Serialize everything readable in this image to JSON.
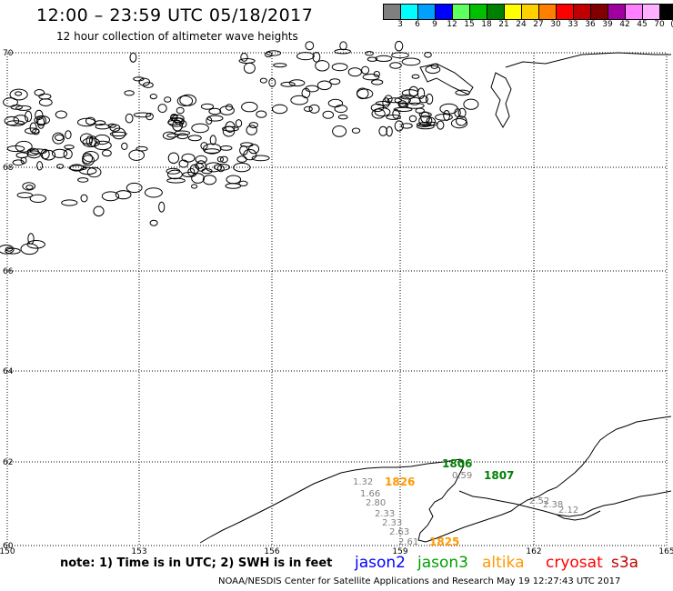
{
  "header": {
    "title": "12:00 – 23:59 UTC 05/18/2017",
    "subtitle": "12 hour collection of altimeter wave heights"
  },
  "color_scale": {
    "colors": [
      "#7f7f7f",
      "#00ffff",
      "#00a0ff",
      "#0000ff",
      "#60ff60",
      "#00c000",
      "#008000",
      "#ffff00",
      "#ffd000",
      "#ff8000",
      "#ff0000",
      "#c00000",
      "#800000",
      "#a000a0",
      "#ff80ff",
      "#ffb0ff",
      "#000000"
    ],
    "labels": [
      "3",
      "6",
      "9",
      "12",
      "15",
      "18",
      "21",
      "24",
      "27",
      "30",
      "33",
      "36",
      "39",
      "42",
      "45",
      "70",
      "(ft)"
    ]
  },
  "map": {
    "lat_labels": [
      "70",
      "68",
      "66",
      "64",
      "62",
      "60"
    ],
    "lon_labels": [
      "150",
      "153",
      "156",
      "159",
      "162",
      "165"
    ],
    "observations": [
      {
        "text": "1.32",
        "color": "#808080",
        "size": "s"
      },
      {
        "text": "1.66",
        "color": "#808080",
        "size": "s"
      },
      {
        "text": "2.80",
        "color": "#808080",
        "size": "s"
      },
      {
        "text": "2.33",
        "color": "#808080",
        "size": "s"
      },
      {
        "text": "2.33",
        "color": "#808080",
        "size": "s"
      },
      {
        "text": "2.63",
        "color": "#808080",
        "size": "s"
      },
      {
        "text": "2.61",
        "color": "#808080",
        "size": "s"
      },
      {
        "text": "0.59",
        "color": "#808080",
        "size": "s"
      },
      {
        "text": "2.52",
        "color": "#808080",
        "size": "s"
      },
      {
        "text": "2.38",
        "color": "#808080",
        "size": "s"
      },
      {
        "text": "2.12",
        "color": "#808080",
        "size": "s"
      },
      {
        "text": "1806",
        "color": "#008000",
        "size": "l"
      },
      {
        "text": "1807",
        "color": "#008000",
        "size": "l"
      },
      {
        "text": "1826",
        "color": "#ff9900",
        "size": "l"
      },
      {
        "text": "1825",
        "color": "#ff9900",
        "size": "l"
      }
    ]
  },
  "note": "note: 1) Time is in UTC; 2) SWH is in feet",
  "satellites": [
    {
      "name": "jason2",
      "color": "#0000ff"
    },
    {
      "name": "jason3",
      "color": "#00a000"
    },
    {
      "name": "altika",
      "color": "#ff9900"
    },
    {
      "name": "cryosat",
      "color": "#ff0000"
    },
    {
      "name": "s3a",
      "color": "#c00000"
    }
  ],
  "footer": "NOAA/NESDIS Center for Satellite Applications and Research    May 19 12:27:43 UTC 2017"
}
